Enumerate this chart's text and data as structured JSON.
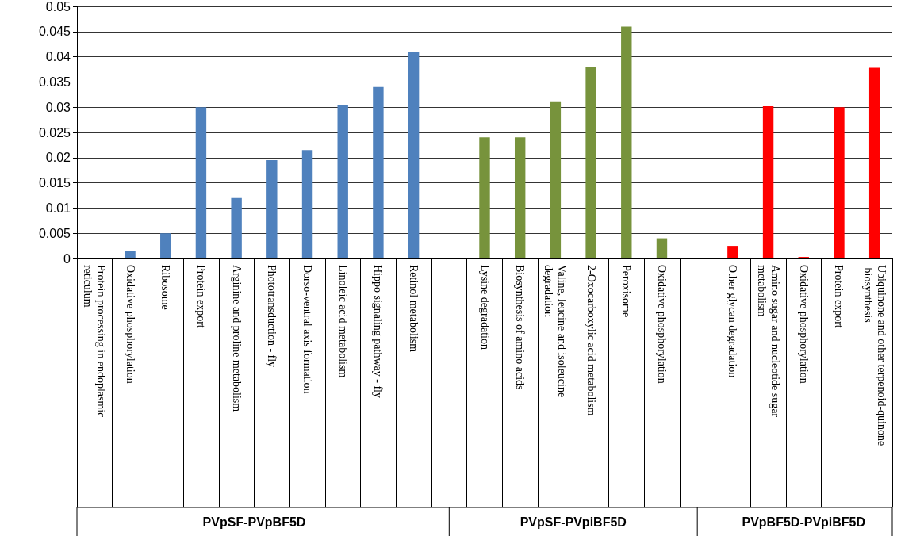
{
  "chart_data": {
    "type": "bar",
    "categories": [
      "Protein processing in endoplasmic reticulum",
      "Oxidative phosphorylation",
      "Ribosome",
      "Protein export",
      "Arginine and proline metabolism",
      "Phototransduction - fly",
      "Dorso-ventral axis formation",
      "Linoleic acid metabolism",
      "Hippo signaling pathway - fly",
      "Retinol metabolism",
      null,
      "Lysine degradation",
      "Biosynthesis of amino acids",
      "Valine, leucine and isoleucine degradation",
      "2-Oxocarboxylic acid metabolism",
      "Peroxisome",
      "Oxidative phosphorylation",
      null,
      "Other glycan degradation",
      "Amino sugar and nucleotide sugar metabolism",
      "Oxidative phosphorylation",
      "Protein export",
      "Ubiquinone and other terpenoid-quinone biosynthesis"
    ],
    "values": [
      0,
      0.0015,
      0.005,
      0.03,
      0.012,
      0.0195,
      0.0215,
      0.0305,
      0.034,
      0.041,
      null,
      0.024,
      0.024,
      0.031,
      0.038,
      0.046,
      0.004,
      null,
      0.0025,
      0.0302,
      0.0003,
      0.03,
      0.0378
    ],
    "colors": [
      "#4f81bd",
      "#4f81bd",
      "#4f81bd",
      "#4f81bd",
      "#4f81bd",
      "#4f81bd",
      "#4f81bd",
      "#4f81bd",
      "#4f81bd",
      "#4f81bd",
      null,
      "#77933c",
      "#77933c",
      "#77933c",
      "#77933c",
      "#77933c",
      "#77933c",
      null,
      "#ff0000",
      "#ff0000",
      "#ff0000",
      "#ff0000",
      "#ff0000"
    ],
    "ylim": [
      0,
      0.05
    ],
    "yticks": [
      0,
      0.005,
      0.01,
      0.015,
      0.02,
      0.025,
      0.03,
      0.035,
      0.04,
      0.045,
      0.05
    ],
    "grid": "y",
    "annotations": [
      "PVpSF-PVpBF5D",
      "PVpSF-PVpiBF5D",
      "PVpBF5D-PVpiBF5D"
    ]
  }
}
